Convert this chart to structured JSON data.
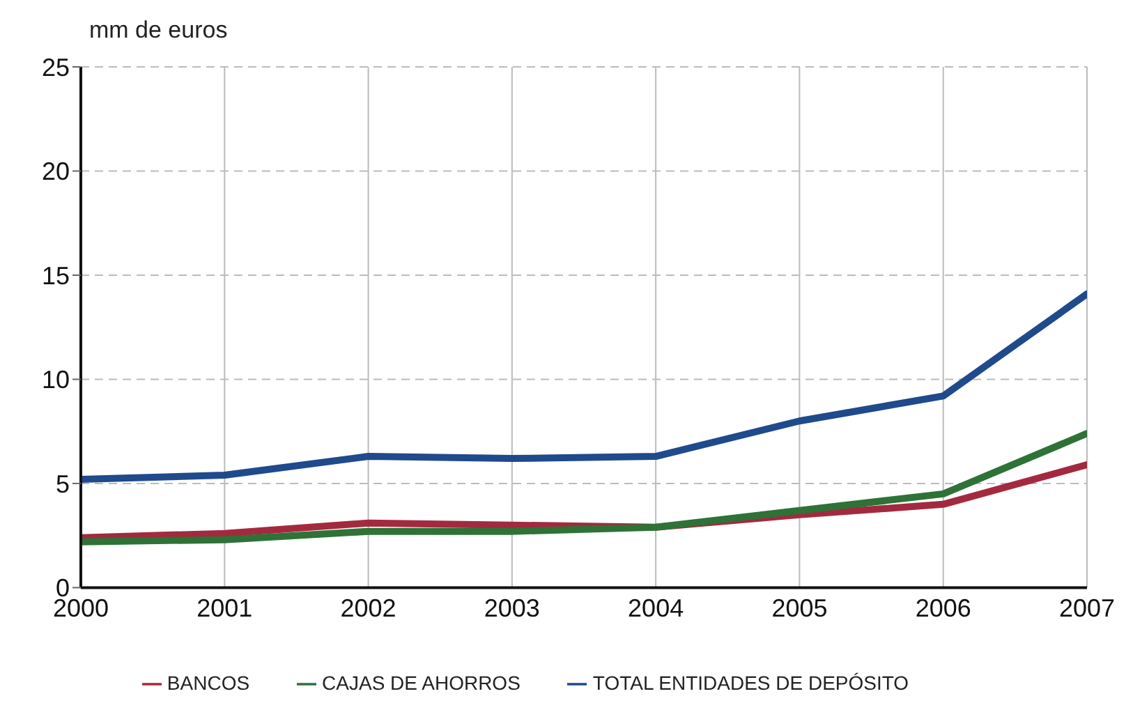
{
  "chart_data": {
    "type": "line",
    "ylabel": "mm de euros",
    "x": [
      2000,
      2001,
      2002,
      2003,
      2004,
      2005,
      2006,
      2007
    ],
    "xlim": [
      2000,
      2007
    ],
    "xticks": [
      2000,
      2001,
      2002,
      2003,
      2004,
      2005,
      2006,
      2007
    ],
    "ylim": [
      0,
      25
    ],
    "yticks": [
      0,
      5,
      10,
      15,
      20,
      25
    ],
    "grid": true,
    "legend": "bottom",
    "marker": "none",
    "line_style": "solid",
    "series": [
      {
        "name": "TOTAL ENTIDADES DE DEPÓSITO",
        "color": "#1f4a8c",
        "values": [
          5.2,
          5.4,
          6.3,
          6.2,
          6.3,
          8.0,
          9.2,
          14.1
        ]
      },
      {
        "name": "BANCOS",
        "color": "#a32a3e",
        "values": [
          2.4,
          2.6,
          3.1,
          3.0,
          2.9,
          3.5,
          4.0,
          5.9
        ]
      },
      {
        "name": "CAJAS DE AHORROS",
        "color": "#2e7237",
        "values": [
          2.2,
          2.3,
          2.7,
          2.7,
          2.9,
          3.7,
          4.5,
          7.4
        ]
      }
    ]
  }
}
